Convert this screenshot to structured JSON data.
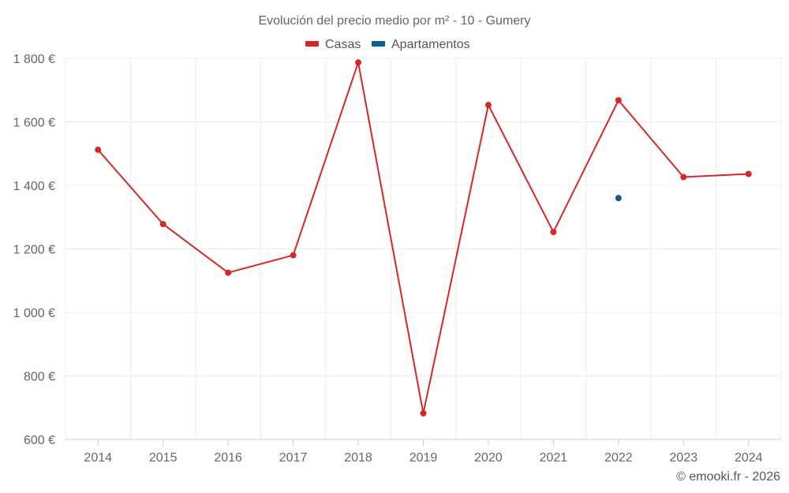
{
  "chart_data": {
    "type": "line",
    "title": "Evolución del precio medio por m² - 10 - Gumery",
    "categories": [
      "2014",
      "2015",
      "2016",
      "2017",
      "2018",
      "2019",
      "2020",
      "2021",
      "2022",
      "2023",
      "2024"
    ],
    "series": [
      {
        "name": "Casas",
        "color": "#d62728",
        "values": [
          1512,
          1278,
          1125,
          1180,
          1787,
          682,
          1653,
          1253,
          1668,
          1426,
          1436
        ]
      },
      {
        "name": "Apartamentos",
        "color": "#0b5f95",
        "values": [
          null,
          null,
          null,
          null,
          null,
          null,
          null,
          null,
          1360,
          null,
          null
        ]
      }
    ],
    "ylim": [
      600,
      1800
    ],
    "yticks": [
      600,
      800,
      1000,
      1200,
      1400,
      1600,
      1800
    ],
    "ytick_labels": [
      "600 €",
      "800 €",
      "1 000 €",
      "1 200 €",
      "1 400 €",
      "1 600 €",
      "1 800 €"
    ],
    "xlabel": "",
    "ylabel": "",
    "grid": true,
    "legend": "top-center"
  },
  "credit": "© emooki.fr - 2026"
}
